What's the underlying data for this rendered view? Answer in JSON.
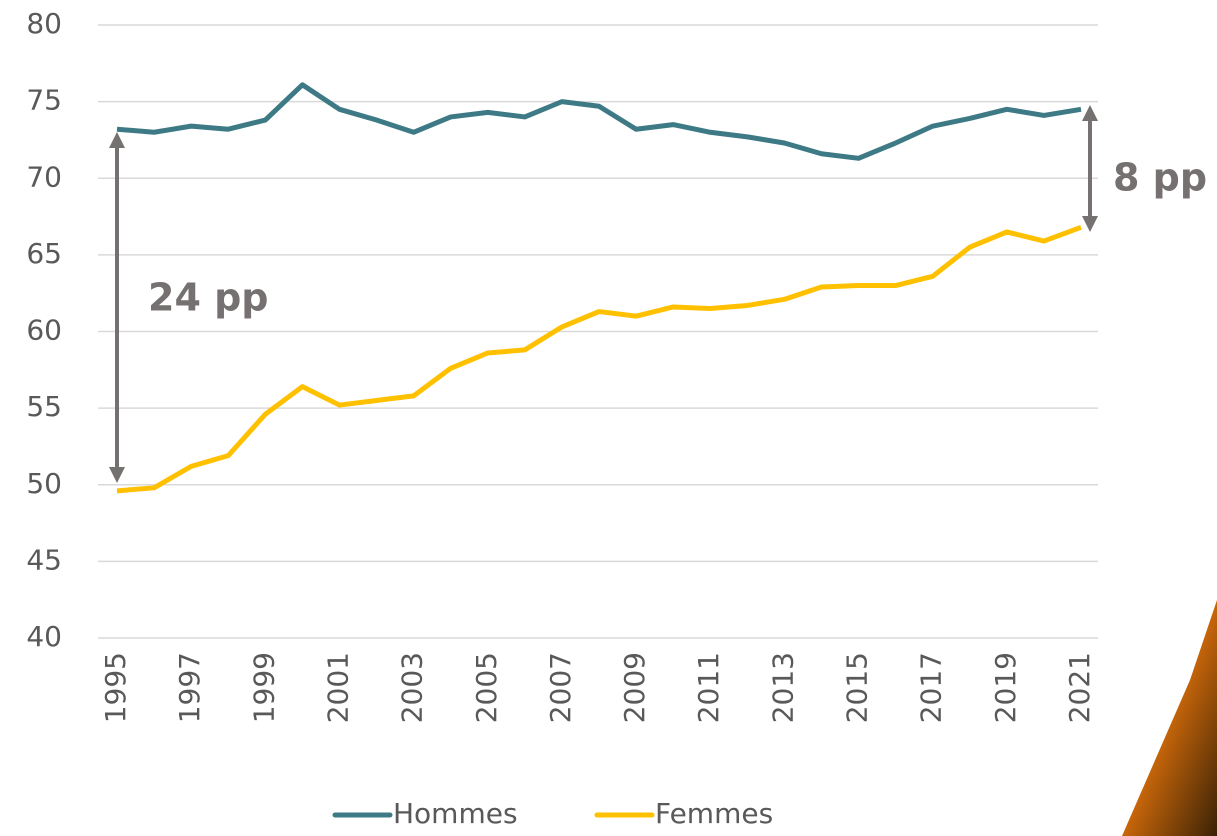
{
  "chart_data": {
    "type": "line",
    "categories": [
      "1995",
      null,
      "1997",
      null,
      "1999",
      null,
      "2001",
      null,
      "2003",
      null,
      "2005",
      null,
      "2007",
      null,
      "2009",
      null,
      "2011",
      null,
      "2013",
      null,
      "2015",
      null,
      "2017",
      null,
      "2019",
      null,
      "2021"
    ],
    "series": [
      {
        "name": "Hommes",
        "color": "#3d7a85",
        "values": [
          73.2,
          73.0,
          73.4,
          73.2,
          73.8,
          76.1,
          74.5,
          73.8,
          73.0,
          74.0,
          74.3,
          74.0,
          75.0,
          74.7,
          73.2,
          73.5,
          73.0,
          72.7,
          72.3,
          71.6,
          71.3,
          72.3,
          73.4,
          73.9,
          74.5,
          74.1,
          74.5
        ]
      },
      {
        "name": "Femmes",
        "color": "#ffc000",
        "values": [
          49.6,
          49.8,
          51.2,
          51.9,
          54.6,
          56.4,
          55.2,
          55.5,
          55.8,
          57.6,
          58.6,
          58.8,
          60.3,
          61.3,
          61.0,
          61.6,
          61.5,
          61.7,
          62.1,
          62.9,
          63.0,
          63.0,
          63.6,
          65.5,
          66.5,
          65.9,
          66.8
        ]
      }
    ],
    "ylim": [
      40,
      80
    ],
    "yticks": [
      40,
      45,
      50,
      55,
      60,
      65,
      70,
      75,
      80
    ],
    "grid": true,
    "annotations": [
      "24 pp",
      "8 pp"
    ],
    "legend": "bottom"
  }
}
